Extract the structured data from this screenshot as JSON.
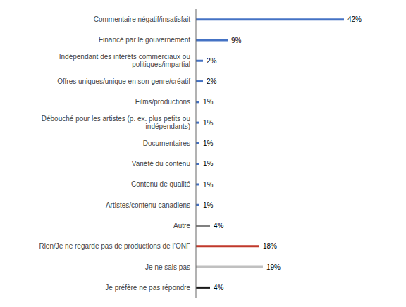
{
  "chart_data": {
    "type": "bar",
    "orientation": "horizontal",
    "categories": [
      "Commentaire négatif/insatisfait",
      "Financé par le gouvernement",
      "Indépendant des intérêts commerciaux ou\npolitiques/impartial",
      "Offres uniques/unique en son genre/créatif",
      "Films/productions",
      "Débouché pour les artistes (p. ex. plus petits ou\nindépendants)",
      "Documentaires",
      "Variété du contenu",
      "Contenu de qualité",
      "Artistes/contenu canadiens",
      "Autre",
      "Rien/Je ne regarde pas de productions de l’ONF",
      "Je ne sais pas",
      "Je préfère ne pas répondre"
    ],
    "values": [
      42,
      9,
      2,
      2,
      1,
      1,
      1,
      1,
      1,
      1,
      4,
      18,
      19,
      4
    ],
    "value_labels": [
      "42%",
      "9%",
      "2%",
      "2%",
      "1%",
      "1%",
      "1%",
      "1%",
      "1%",
      "1%",
      "4%",
      "18%",
      "19%",
      "4%"
    ],
    "colors": [
      "#4472c4",
      "#4472c4",
      "#4472c4",
      "#4472c4",
      "#4472c4",
      "#4472c4",
      "#4472c4",
      "#4472c4",
      "#4472c4",
      "#4472c4",
      "#808080",
      "#c0392b",
      "#c0c0c0",
      "#1a1a1a"
    ],
    "xlim": [
      0,
      50
    ],
    "data_labels": true,
    "tick_labels": "y",
    "grid": false
  }
}
